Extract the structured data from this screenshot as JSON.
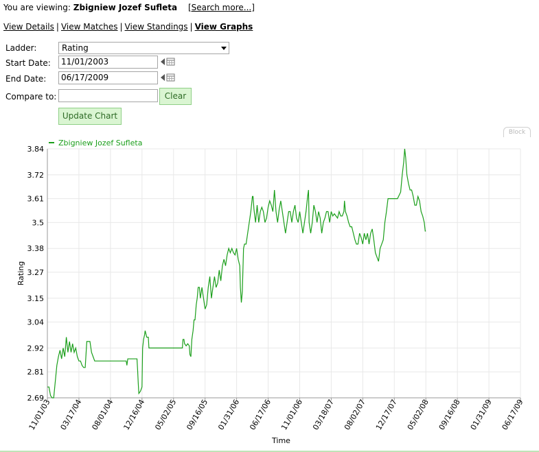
{
  "header": {
    "viewing_prefix": "You are viewing:",
    "player_name": "Zbigniew Jozef Sufleta",
    "search_link": "[Search more...]"
  },
  "nav": {
    "items": [
      "View Details",
      "View Matches",
      "View Standings",
      "View Graphs"
    ],
    "active": "View Graphs"
  },
  "form": {
    "ladder_label": "Ladder:",
    "ladder_value": "Rating",
    "start_label": "Start Date:",
    "start_value": "11/01/2003",
    "end_label": "End Date:",
    "end_value": "06/17/2009",
    "compare_label": "Compare to:",
    "compare_value": "",
    "clear_button": "Clear",
    "update_button": "Update Chart"
  },
  "block_tab": "Block",
  "colors": {
    "line": "#1a9e1a",
    "grid": "#e8e8e8",
    "button_bg": "#daf5d2",
    "button_border": "#8fcf86"
  },
  "chart_data": {
    "type": "line",
    "xlabel": "Time",
    "ylabel": "Rating",
    "ylim": [
      2.69,
      3.84
    ],
    "y_ticks": [
      "2.69",
      "2.81",
      "2.92",
      "3.04",
      "3.15",
      "3.27",
      "3.38",
      "3.5",
      "3.61",
      "3.72",
      "3.84"
    ],
    "x_ticks": [
      "11/01/03",
      "03/17/04",
      "08/01/04",
      "12/16/04",
      "05/02/05",
      "09/16/05",
      "01/31/06",
      "06/17/06",
      "11/01/06",
      "03/18/07",
      "08/02/07",
      "12/17/07",
      "05/02/08",
      "09/16/08",
      "01/31/09",
      "06/17/09"
    ],
    "series": [
      {
        "name": "Zbigniew Jozef Sufleta",
        "points": [
          [
            0,
            2.74
          ],
          [
            0.05,
            2.74
          ],
          [
            0.1,
            2.7
          ],
          [
            0.15,
            2.69
          ],
          [
            0.2,
            2.69
          ],
          [
            0.3,
            2.84
          ],
          [
            0.35,
            2.88
          ],
          [
            0.4,
            2.91
          ],
          [
            0.45,
            2.87
          ],
          [
            0.5,
            2.92
          ],
          [
            0.55,
            2.88
          ],
          [
            0.6,
            2.97
          ],
          [
            0.65,
            2.9
          ],
          [
            0.7,
            2.95
          ],
          [
            0.75,
            2.9
          ],
          [
            0.8,
            2.94
          ],
          [
            0.85,
            2.9
          ],
          [
            0.9,
            2.92
          ],
          [
            0.95,
            2.88
          ],
          [
            1.0,
            2.86
          ],
          [
            1.05,
            2.86
          ],
          [
            1.1,
            2.84
          ],
          [
            1.15,
            2.83
          ],
          [
            1.2,
            2.83
          ],
          [
            1.25,
            2.95
          ],
          [
            1.3,
            2.95
          ],
          [
            1.35,
            2.95
          ],
          [
            1.4,
            2.9
          ],
          [
            1.45,
            2.88
          ],
          [
            1.5,
            2.86
          ],
          [
            1.6,
            2.86
          ],
          [
            1.8,
            2.86
          ],
          [
            2.0,
            2.86
          ],
          [
            2.2,
            2.86
          ],
          [
            2.4,
            2.86
          ],
          [
            2.5,
            2.86
          ],
          [
            2.52,
            2.84
          ],
          [
            2.55,
            2.87
          ],
          [
            2.7,
            2.87
          ],
          [
            2.84,
            2.87
          ],
          [
            2.86,
            2.82
          ],
          [
            2.88,
            2.76
          ],
          [
            2.9,
            2.71
          ],
          [
            2.95,
            2.72
          ],
          [
            3.0,
            2.74
          ],
          [
            3.02,
            2.92
          ],
          [
            3.05,
            2.96
          ],
          [
            3.08,
            2.98
          ],
          [
            3.1,
            3.0
          ],
          [
            3.15,
            2.97
          ],
          [
            3.2,
            2.97
          ],
          [
            3.22,
            2.92
          ],
          [
            3.4,
            2.92
          ],
          [
            3.6,
            2.92
          ],
          [
            3.8,
            2.92
          ],
          [
            4.0,
            2.92
          ],
          [
            4.2,
            2.92
          ],
          [
            4.28,
            2.92
          ],
          [
            4.3,
            2.96
          ],
          [
            4.33,
            2.96
          ],
          [
            4.35,
            2.94
          ],
          [
            4.4,
            2.93
          ],
          [
            4.45,
            2.94
          ],
          [
            4.5,
            2.93
          ],
          [
            4.52,
            2.89
          ],
          [
            4.55,
            2.88
          ],
          [
            4.58,
            2.96
          ],
          [
            4.62,
            3.0
          ],
          [
            4.65,
            3.05
          ],
          [
            4.68,
            3.05
          ],
          [
            4.72,
            3.12
          ],
          [
            4.75,
            3.15
          ],
          [
            4.78,
            3.2
          ],
          [
            4.82,
            3.2
          ],
          [
            4.85,
            3.15
          ],
          [
            4.9,
            3.2
          ],
          [
            4.95,
            3.15
          ],
          [
            5.0,
            3.1
          ],
          [
            5.05,
            3.12
          ],
          [
            5.1,
            3.2
          ],
          [
            5.15,
            3.25
          ],
          [
            5.2,
            3.15
          ],
          [
            5.25,
            3.2
          ],
          [
            5.3,
            3.25
          ],
          [
            5.35,
            3.2
          ],
          [
            5.4,
            3.22
          ],
          [
            5.45,
            3.28
          ],
          [
            5.5,
            3.23
          ],
          [
            5.55,
            3.3
          ],
          [
            5.6,
            3.33
          ],
          [
            5.65,
            3.3
          ],
          [
            5.7,
            3.35
          ],
          [
            5.75,
            3.38
          ],
          [
            5.8,
            3.36
          ],
          [
            5.85,
            3.38
          ],
          [
            5.9,
            3.36
          ],
          [
            5.95,
            3.35
          ],
          [
            6.0,
            3.38
          ],
          [
            6.05,
            3.33
          ],
          [
            6.1,
            3.3
          ],
          [
            6.12,
            3.2
          ],
          [
            6.15,
            3.13
          ],
          [
            6.18,
            3.18
          ],
          [
            6.22,
            3.38
          ],
          [
            6.25,
            3.4
          ],
          [
            6.3,
            3.4
          ],
          [
            6.35,
            3.45
          ],
          [
            6.4,
            3.5
          ],
          [
            6.45,
            3.55
          ],
          [
            6.5,
            3.62
          ],
          [
            6.52,
            3.62
          ],
          [
            6.55,
            3.56
          ],
          [
            6.6,
            3.5
          ],
          [
            6.65,
            3.58
          ],
          [
            6.7,
            3.5
          ],
          [
            6.75,
            3.55
          ],
          [
            6.8,
            3.57
          ],
          [
            6.85,
            3.55
          ],
          [
            6.9,
            3.5
          ],
          [
            6.95,
            3.52
          ],
          [
            7.0,
            3.57
          ],
          [
            7.05,
            3.6
          ],
          [
            7.1,
            3.58
          ],
          [
            7.15,
            3.55
          ],
          [
            7.2,
            3.65
          ],
          [
            7.25,
            3.55
          ],
          [
            7.3,
            3.5
          ],
          [
            7.35,
            3.56
          ],
          [
            7.4,
            3.6
          ],
          [
            7.45,
            3.55
          ],
          [
            7.5,
            3.5
          ],
          [
            7.55,
            3.45
          ],
          [
            7.6,
            3.5
          ],
          [
            7.65,
            3.55
          ],
          [
            7.7,
            3.55
          ],
          [
            7.75,
            3.5
          ],
          [
            7.8,
            3.55
          ],
          [
            7.85,
            3.58
          ],
          [
            7.9,
            3.52
          ],
          [
            7.95,
            3.5
          ],
          [
            8.0,
            3.55
          ],
          [
            8.05,
            3.5
          ],
          [
            8.1,
            3.45
          ],
          [
            8.15,
            3.5
          ],
          [
            8.2,
            3.55
          ],
          [
            8.25,
            3.62
          ],
          [
            8.28,
            3.65
          ],
          [
            8.3,
            3.5
          ],
          [
            8.35,
            3.45
          ],
          [
            8.4,
            3.5
          ],
          [
            8.45,
            3.58
          ],
          [
            8.5,
            3.55
          ],
          [
            8.55,
            3.5
          ],
          [
            8.6,
            3.55
          ],
          [
            8.65,
            3.52
          ],
          [
            8.7,
            3.45
          ],
          [
            8.75,
            3.5
          ],
          [
            8.8,
            3.52
          ],
          [
            8.85,
            3.55
          ],
          [
            8.9,
            3.55
          ],
          [
            8.95,
            3.5
          ],
          [
            9.0,
            3.55
          ],
          [
            9.05,
            3.53
          ],
          [
            9.1,
            3.54
          ],
          [
            9.15,
            3.53
          ],
          [
            9.2,
            3.52
          ],
          [
            9.25,
            3.55
          ],
          [
            9.3,
            3.53
          ],
          [
            9.35,
            3.53
          ],
          [
            9.4,
            3.55
          ],
          [
            9.42,
            3.6
          ],
          [
            9.45,
            3.55
          ],
          [
            9.5,
            3.53
          ],
          [
            9.55,
            3.5
          ],
          [
            9.6,
            3.48
          ],
          [
            9.65,
            3.48
          ],
          [
            9.7,
            3.45
          ],
          [
            9.75,
            3.42
          ],
          [
            9.8,
            3.4
          ],
          [
            9.85,
            3.4
          ],
          [
            9.9,
            3.45
          ],
          [
            9.95,
            3.43
          ],
          [
            10.0,
            3.4
          ],
          [
            10.05,
            3.45
          ],
          [
            10.1,
            3.42
          ],
          [
            10.15,
            3.45
          ],
          [
            10.2,
            3.4
          ],
          [
            10.25,
            3.45
          ],
          [
            10.3,
            3.47
          ],
          [
            10.35,
            3.42
          ],
          [
            10.4,
            3.36
          ],
          [
            10.45,
            3.34
          ],
          [
            10.5,
            3.32
          ],
          [
            10.55,
            3.38
          ],
          [
            10.6,
            3.4
          ],
          [
            10.65,
            3.42
          ],
          [
            10.7,
            3.5
          ],
          [
            10.75,
            3.55
          ],
          [
            10.8,
            3.61
          ],
          [
            11.0,
            3.61
          ],
          [
            11.1,
            3.61
          ],
          [
            11.2,
            3.64
          ],
          [
            11.25,
            3.72
          ],
          [
            11.3,
            3.78
          ],
          [
            11.33,
            3.84
          ],
          [
            11.36,
            3.8
          ],
          [
            11.4,
            3.72
          ],
          [
            11.45,
            3.68
          ],
          [
            11.5,
            3.65
          ],
          [
            11.55,
            3.65
          ],
          [
            11.6,
            3.62
          ],
          [
            11.65,
            3.58
          ],
          [
            11.7,
            3.58
          ],
          [
            11.75,
            3.62
          ],
          [
            11.8,
            3.6
          ],
          [
            11.85,
            3.55
          ],
          [
            11.9,
            3.53
          ],
          [
            11.95,
            3.5
          ],
          [
            11.98,
            3.46
          ],
          [
            12.0,
            3.46
          ]
        ]
      }
    ]
  }
}
